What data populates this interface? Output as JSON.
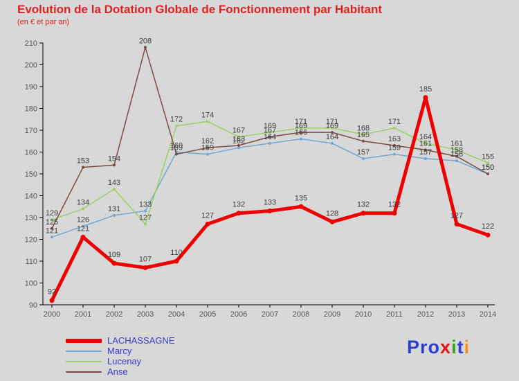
{
  "title": "Evolution de la Dotation Globale de Fonctionnement par Habitant",
  "subtitle": "(en € et par an)",
  "colors": {
    "background": "#d8d8d8",
    "title": "#e01f1f",
    "axis": "#000000",
    "tick_label": "#555555",
    "data_label": "#3c3c3c",
    "legend_text": "#3a3ac8"
  },
  "chart_data": {
    "type": "line",
    "x": [
      "2000",
      "2001",
      "2002",
      "2003",
      "2004",
      "2005",
      "2006",
      "2007",
      "2008",
      "2009",
      "2010",
      "2011",
      "2012",
      "2013",
      "2014"
    ],
    "series": [
      {
        "name": "LACHASSAGNE",
        "color": "#ee0000",
        "line_width": 5,
        "values": [
          92,
          121,
          109,
          107,
          110,
          127,
          132,
          133,
          135,
          128,
          132,
          132,
          185,
          127,
          122
        ]
      },
      {
        "name": "Marcy",
        "color": "#6fa8d2",
        "line_width": 1.5,
        "values": [
          121,
          126,
          131,
          133,
          160,
          159,
          162,
          164,
          166,
          164,
          157,
          159,
          157,
          156,
          150
        ]
      },
      {
        "name": "Lucenay",
        "color": "#9ed061",
        "line_width": 1.5,
        "values": [
          129,
          134,
          143,
          127,
          172,
          174,
          167,
          169,
          171,
          171,
          168,
          171,
          164,
          161,
          155
        ]
      },
      {
        "name": "Anse",
        "color": "#7d4a42",
        "line_width": 1.5,
        "values": [
          125,
          153,
          154,
          208,
          159,
          162,
          163,
          167,
          169,
          169,
          165,
          163,
          161,
          158,
          150
        ]
      }
    ],
    "ylim": [
      90,
      210
    ],
    "ytick_step": 10,
    "grid": false,
    "legend_position": "bottom-left"
  },
  "legend": [
    {
      "label": "LACHASSAGNE",
      "color": "#ee0000",
      "thick": true
    },
    {
      "label": "Marcy",
      "color": "#6fa8d2",
      "thick": false
    },
    {
      "label": "Lucenay",
      "color": "#9ed061",
      "thick": false
    },
    {
      "label": "Anse",
      "color": "#7d4a42",
      "thick": false
    }
  ],
  "logo": {
    "letters": [
      {
        "ch": "P",
        "color": "#2b3fd0"
      },
      {
        "ch": "r",
        "color": "#2b3fd0"
      },
      {
        "ch": "o",
        "color": "#2b3fd0"
      },
      {
        "ch": "x",
        "color": "#e01414"
      },
      {
        "ch": "i",
        "color": "#3aa21c"
      },
      {
        "ch": "t",
        "color": "#2b3fd0"
      },
      {
        "ch": "i",
        "color": "#f2901e"
      }
    ]
  }
}
